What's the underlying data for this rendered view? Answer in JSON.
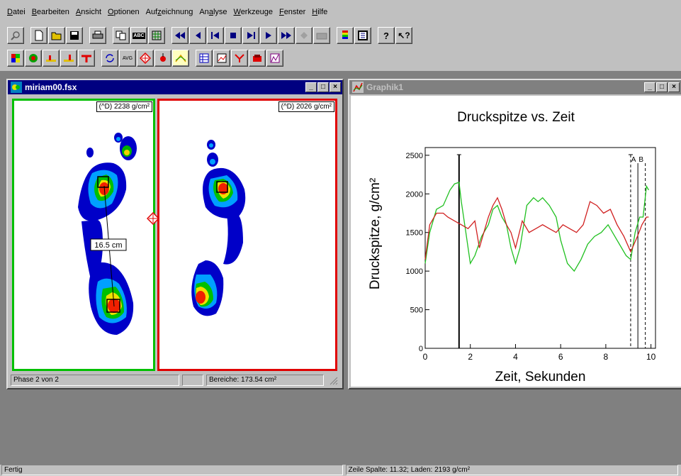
{
  "menu": [
    {
      "pre": "",
      "u": "D",
      "post": "atei"
    },
    {
      "pre": "",
      "u": "B",
      "post": "earbeiten"
    },
    {
      "pre": "",
      "u": "A",
      "post": "nsicht"
    },
    {
      "pre": "",
      "u": "O",
      "post": "ptionen"
    },
    {
      "pre": "Auf",
      "u": "z",
      "post": "eichnung"
    },
    {
      "pre": "An",
      "u": "a",
      "post": "lyse"
    },
    {
      "pre": "",
      "u": "W",
      "post": "erkzeuge"
    },
    {
      "pre": "",
      "u": "F",
      "post": "enster"
    },
    {
      "pre": "",
      "u": "H",
      "post": "ilfe"
    }
  ],
  "toolbar": {
    "avg_label": "AVG",
    "abc_label": "ABC"
  },
  "footwin": {
    "title": "miriam00.fsx",
    "left_peak": "(^D) 2238 g/cm²",
    "right_peak": "(^D) 2026 g/cm²",
    "distance": "16.5 cm",
    "status_phase": "Phase 2 von 2",
    "status_area": "Bereiche: 173.54 cm²",
    "left_border": "#00c000",
    "right_border": "#e00000"
  },
  "graphwin": {
    "title": "Graphik1"
  },
  "chart_data": {
    "type": "line",
    "title": "Druckspitze vs. Zeit",
    "xlabel": "Zeit, Sekunden",
    "ylabel": "Druckspitze, g/cm²",
    "xlim": [
      0,
      10.2
    ],
    "ylim": [
      0,
      2600
    ],
    "xticks": [
      0,
      2,
      4,
      6,
      8,
      10
    ],
    "yticks": [
      0,
      500,
      1000,
      1500,
      2000,
      2500
    ],
    "markers": [
      {
        "x": 1.5,
        "label": "",
        "style": "solid"
      },
      {
        "x": 9.1,
        "label": "",
        "style": "dashed"
      },
      {
        "x": 9.42,
        "label": "A",
        "style": "solid"
      },
      {
        "x": 9.75,
        "label": "B",
        "style": "dashed"
      }
    ],
    "series": [
      {
        "color": "#20c020",
        "x": [
          0,
          0.2,
          0.5,
          0.8,
          1.1,
          1.3,
          1.5,
          1.6,
          1.8,
          2.0,
          2.2,
          2.5,
          2.8,
          3.0,
          3.2,
          3.4,
          3.6,
          3.8,
          4.0,
          4.2,
          4.5,
          4.8,
          5.0,
          5.2,
          5.5,
          5.8,
          6.0,
          6.3,
          6.6,
          6.9,
          7.2,
          7.5,
          7.8,
          8.1,
          8.4,
          8.7,
          8.9,
          9.1,
          9.3,
          9.5,
          9.65,
          9.8,
          9.9
        ],
        "y": [
          1100,
          1500,
          1800,
          1850,
          2050,
          2130,
          2150,
          1900,
          1500,
          1100,
          1200,
          1450,
          1600,
          1800,
          1850,
          1700,
          1600,
          1300,
          1100,
          1300,
          1850,
          1950,
          1900,
          1950,
          1850,
          1700,
          1400,
          1100,
          1000,
          1150,
          1350,
          1450,
          1500,
          1600,
          1450,
          1300,
          1200,
          1150,
          1500,
          1700,
          1700,
          2100,
          2050
        ]
      },
      {
        "color": "#d02020",
        "x": [
          0,
          0.2,
          0.5,
          0.8,
          1.0,
          1.3,
          1.6,
          1.9,
          2.2,
          2.4,
          2.6,
          2.8,
          3.0,
          3.2,
          3.4,
          3.6,
          3.8,
          4.0,
          4.3,
          4.6,
          4.9,
          5.2,
          5.5,
          5.8,
          6.1,
          6.4,
          6.7,
          7.0,
          7.3,
          7.6,
          7.9,
          8.2,
          8.5,
          8.8,
          9.1,
          9.4,
          9.6,
          9.8,
          9.9
        ],
        "y": [
          1150,
          1600,
          1750,
          1750,
          1700,
          1650,
          1600,
          1550,
          1650,
          1300,
          1500,
          1700,
          1850,
          1950,
          1800,
          1600,
          1500,
          1300,
          1650,
          1500,
          1550,
          1600,
          1550,
          1500,
          1600,
          1550,
          1500,
          1600,
          1900,
          1850,
          1750,
          1800,
          1600,
          1450,
          1250,
          1450,
          1600,
          1700,
          1700
        ]
      }
    ]
  },
  "app_status": {
    "left": "Fertig",
    "right": "Zeile Spalte: 11.32;  Laden: 2193 g/cm²"
  }
}
